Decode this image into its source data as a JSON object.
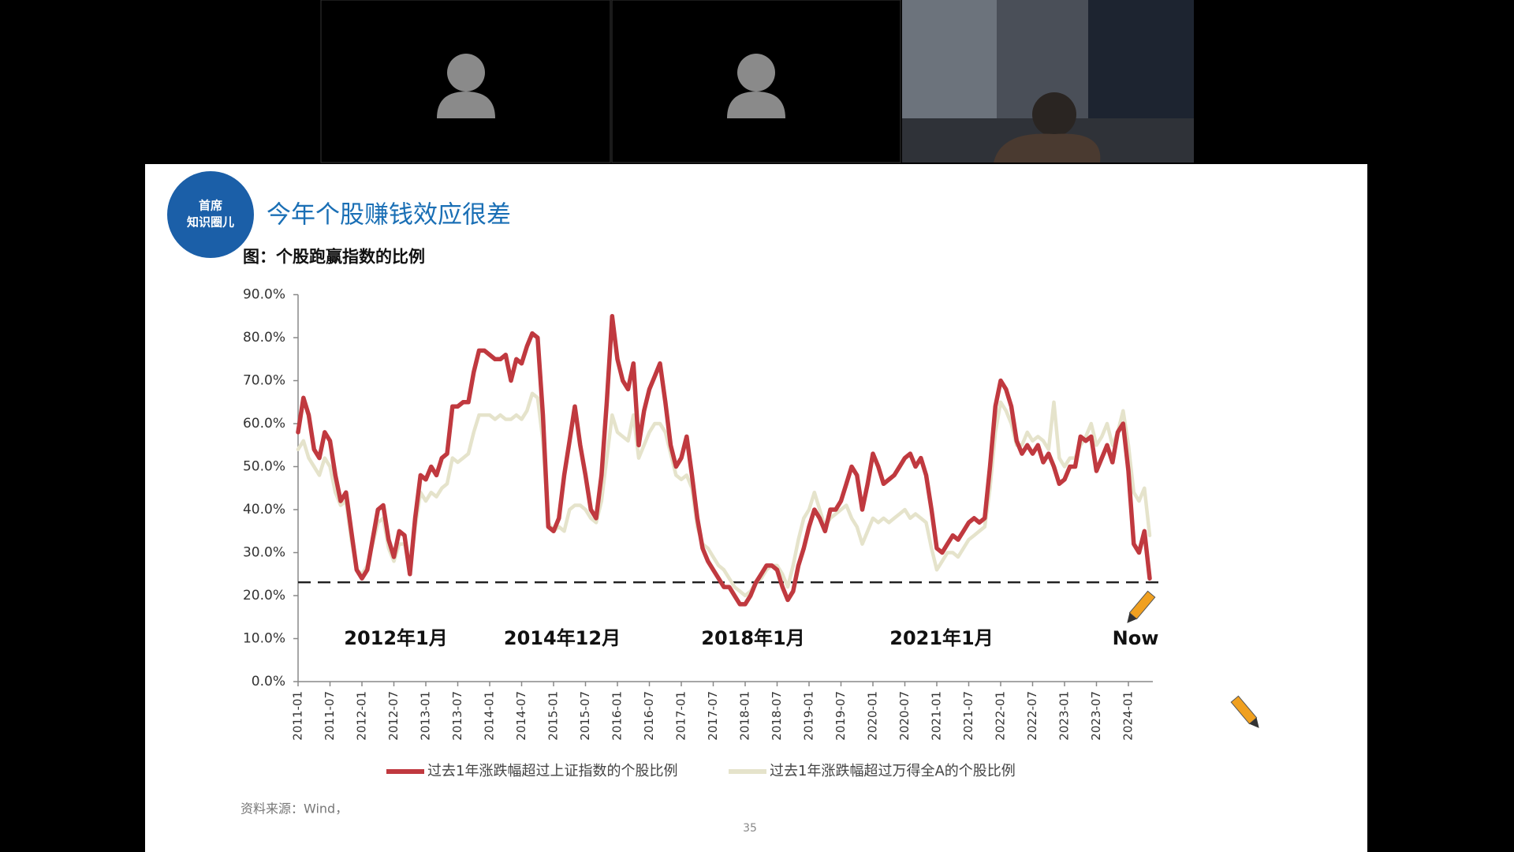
{
  "slide": {
    "logo": [
      "首席",
      "知识圈儿"
    ],
    "title": "今年个股赚钱效应很差",
    "source": "资料来源：Wind，",
    "page_number": "35"
  },
  "chart_data": {
    "type": "line",
    "title": "图：个股跑赢指数的比例",
    "categories": [
      "2011-01",
      null,
      null,
      null,
      null,
      null,
      "2011-07",
      null,
      null,
      null,
      null,
      null,
      "2012-01",
      null,
      null,
      null,
      null,
      null,
      "2012-07",
      null,
      null,
      null,
      null,
      null,
      "2013-01",
      null,
      null,
      null,
      null,
      null,
      "2013-07",
      null,
      null,
      null,
      null,
      null,
      "2014-01",
      null,
      null,
      null,
      null,
      null,
      "2014-07",
      null,
      null,
      null,
      null,
      null,
      "2015-01",
      null,
      null,
      null,
      null,
      null,
      "2015-07",
      null,
      null,
      null,
      null,
      null,
      "2016-01",
      null,
      null,
      null,
      null,
      null,
      "2016-07",
      null,
      null,
      null,
      null,
      null,
      "2017-01",
      null,
      null,
      null,
      null,
      null,
      "2017-07",
      null,
      null,
      null,
      null,
      null,
      "2018-01",
      null,
      null,
      null,
      null,
      null,
      "2018-07",
      null,
      null,
      null,
      null,
      null,
      "2019-01",
      null,
      null,
      null,
      null,
      null,
      "2019-07",
      null,
      null,
      null,
      null,
      null,
      "2020-01",
      null,
      null,
      null,
      null,
      null,
      "2020-07",
      null,
      null,
      null,
      null,
      null,
      "2021-01",
      null,
      null,
      null,
      null,
      null,
      "2021-07",
      null,
      null,
      null,
      null,
      null,
      "2022-01",
      null,
      null,
      null,
      null,
      null,
      "2022-07",
      null,
      null,
      null,
      null,
      null,
      "2023-01",
      null,
      null,
      null,
      null,
      null,
      "2023-07",
      null,
      null,
      null,
      null,
      null,
      "2024-01",
      null,
      null,
      null,
      null
    ],
    "series": [
      {
        "name": "过去1年涨跌幅超过上证指数的个股比例",
        "color": "#c0393f",
        "values": [
          58,
          66,
          62,
          54,
          52,
          58,
          56,
          48,
          42,
          44,
          35,
          26,
          24,
          26,
          33,
          40,
          41,
          33,
          29,
          35,
          34,
          25,
          38,
          48,
          47,
          50,
          48,
          52,
          53,
          64,
          64,
          65,
          65,
          72,
          77,
          77,
          76,
          75,
          75,
          76,
          70,
          75,
          74,
          78,
          81,
          80,
          62,
          36,
          35,
          38,
          48,
          56,
          64,
          55,
          48,
          40,
          38,
          48,
          65,
          85,
          75,
          70,
          68,
          74,
          55,
          63,
          68,
          71,
          74,
          65,
          55,
          50,
          52,
          57,
          48,
          38,
          31,
          28,
          26,
          24,
          22,
          22,
          20,
          18,
          18,
          20,
          23,
          25,
          27,
          27,
          26,
          22,
          19,
          21,
          27,
          31,
          36,
          40,
          38,
          35,
          40,
          40,
          42,
          46,
          50,
          48,
          40,
          46,
          53,
          50,
          46,
          47,
          48,
          50,
          52,
          53,
          50,
          52,
          48,
          40,
          31,
          30,
          32,
          34,
          33,
          35,
          37,
          38,
          37,
          38,
          50,
          64,
          70,
          68,
          64,
          56,
          53,
          55,
          53,
          55,
          51,
          53,
          50,
          46,
          47,
          50,
          50,
          57,
          56,
          57,
          49,
          52,
          55,
          51,
          58,
          60,
          49,
          32,
          30,
          35,
          24
        ]
      },
      {
        "name": "过去1年涨跌幅超过万得全A的个股比例",
        "color": "#e5e3cb",
        "values": [
          54,
          56,
          52,
          50,
          48,
          52,
          50,
          44,
          41,
          42,
          33,
          26,
          25,
          27,
          32,
          37,
          38,
          31,
          28,
          32,
          32,
          26,
          36,
          44,
          42,
          44,
          43,
          45,
          46,
          52,
          51,
          52,
          53,
          58,
          62,
          62,
          62,
          61,
          62,
          61,
          61,
          62,
          61,
          63,
          67,
          66,
          56,
          37,
          35,
          36,
          35,
          40,
          41,
          41,
          40,
          38,
          37,
          42,
          52,
          62,
          58,
          57,
          56,
          62,
          52,
          55,
          58,
          60,
          60,
          58,
          53,
          48,
          47,
          48,
          45,
          36,
          32,
          31,
          29,
          27,
          26,
          24,
          22,
          21,
          20,
          21,
          23,
          24,
          26,
          27,
          27,
          25,
          22,
          27,
          33,
          38,
          40,
          44,
          40,
          36,
          38,
          39,
          40,
          41,
          38,
          36,
          32,
          35,
          38,
          37,
          38,
          37,
          38,
          39,
          40,
          38,
          39,
          38,
          37,
          31,
          26,
          28,
          30,
          30,
          29,
          31,
          33,
          34,
          35,
          36,
          45,
          58,
          65,
          63,
          60,
          55,
          55,
          58,
          56,
          57,
          56,
          54,
          65,
          52,
          50,
          52,
          52,
          55,
          57,
          60,
          55,
          57,
          60,
          55,
          58,
          63,
          55,
          44,
          42,
          45,
          34
        ]
      }
    ],
    "ylim": [
      0,
      90
    ],
    "yticks": [
      {
        "value": 0,
        "label": "0.0%"
      },
      {
        "value": 10,
        "label": "10.0%"
      },
      {
        "value": 20,
        "label": "20.0%"
      },
      {
        "value": 30,
        "label": "30.0%"
      },
      {
        "value": 40,
        "label": "40.0%"
      },
      {
        "value": 50,
        "label": "50.0%"
      },
      {
        "value": 60,
        "label": "60.0%"
      },
      {
        "value": 70,
        "label": "70.0%"
      },
      {
        "value": 80,
        "label": "80.0%"
      },
      {
        "value": 90,
        "label": "90.0%"
      }
    ],
    "reference_line": 23.1,
    "annotations": [
      "2012年1月",
      "2014年12月",
      "2018年1月",
      "2021年1月",
      "Now"
    ],
    "grid": false
  }
}
